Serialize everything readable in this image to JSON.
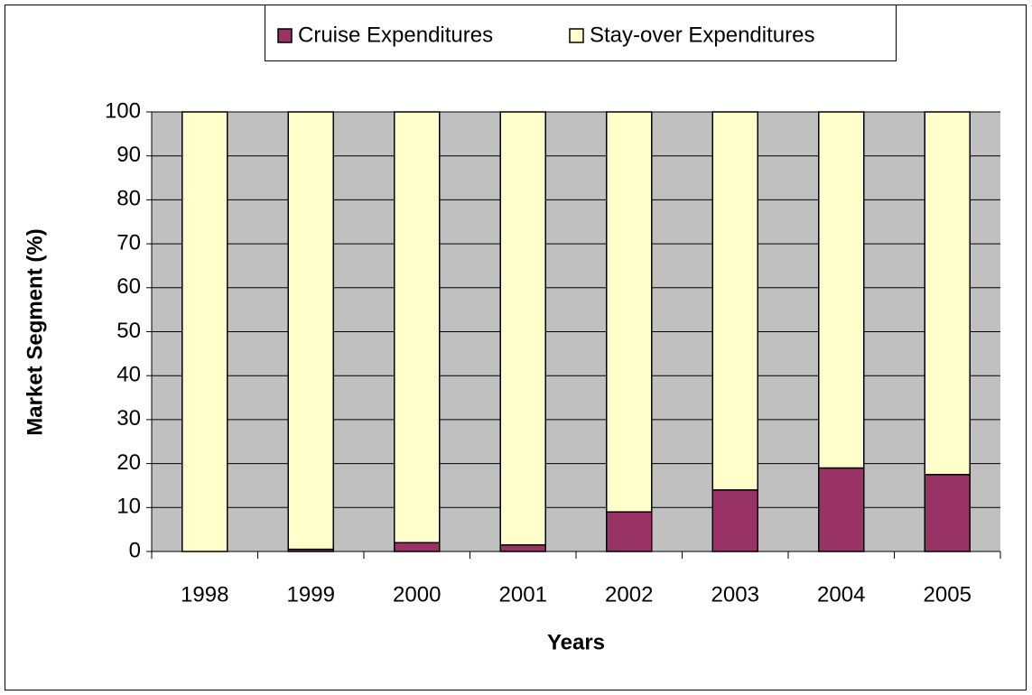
{
  "chart_data": {
    "type": "stacked_bar",
    "categories": [
      "1998",
      "1999",
      "2000",
      "2001",
      "2002",
      "2003",
      "2004",
      "2005"
    ],
    "series": [
      {
        "name": "Cruise Expenditures",
        "color": "#993366",
        "values": [
          0,
          0.5,
          2,
          1.5,
          9,
          14,
          19,
          17.5
        ]
      },
      {
        "name": "Stay-over Expenditures",
        "color": "#ffffcc",
        "values": [
          100,
          99.5,
          98,
          98.5,
          91,
          86,
          81,
          82.5
        ]
      }
    ],
    "xlabel": "Years",
    "ylabel": "Market Segment (%)",
    "ylim": [
      0,
      100
    ],
    "yticks": [
      0,
      10,
      20,
      30,
      40,
      50,
      60,
      70,
      80,
      90,
      100
    ],
    "grid": true,
    "legend": "top"
  }
}
